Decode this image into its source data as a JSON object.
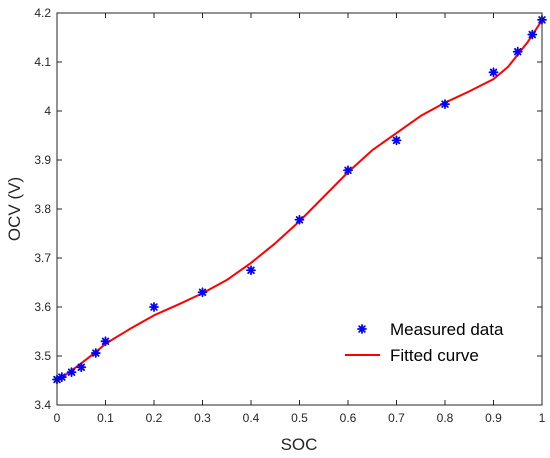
{
  "chart_data": {
    "type": "scatter",
    "xlabel": "SOC",
    "ylabel": "OCV (V)",
    "xlim": [
      0,
      1
    ],
    "ylim": [
      3.4,
      4.2
    ],
    "xticks": [
      "0",
      "0.1",
      "0.2",
      "0.3",
      "0.4",
      "0.5",
      "0.6",
      "0.7",
      "0.8",
      "0.9",
      "1"
    ],
    "yticks": [
      "3.4",
      "3.5",
      "3.6",
      "3.7",
      "3.8",
      "3.9",
      "4",
      "4.1",
      "4.2"
    ],
    "grid": false,
    "legend_position": "bottom-right",
    "series": [
      {
        "name": "Measured data",
        "kind": "markers",
        "marker": "asterisk",
        "color": "#0000FF",
        "x": [
          0,
          0.01,
          0.03,
          0.05,
          0.08,
          0.1,
          0.2,
          0.3,
          0.4,
          0.5,
          0.6,
          0.7,
          0.8,
          0.9,
          0.95,
          0.98,
          1.0
        ],
        "y": [
          3.452,
          3.457,
          3.467,
          3.477,
          3.506,
          3.53,
          3.6,
          3.63,
          3.675,
          3.778,
          3.879,
          3.94,
          4.014,
          4.079,
          4.121,
          4.156,
          4.186
        ]
      },
      {
        "name": "Fitted curve",
        "kind": "line",
        "color": "#FF0000",
        "x": [
          0,
          0.02,
          0.05,
          0.08,
          0.1,
          0.15,
          0.2,
          0.25,
          0.3,
          0.35,
          0.4,
          0.45,
          0.5,
          0.55,
          0.6,
          0.65,
          0.7,
          0.75,
          0.8,
          0.85,
          0.9,
          0.93,
          0.95,
          0.97,
          0.99,
          1.0
        ],
        "y": [
          3.45,
          3.463,
          3.485,
          3.508,
          3.525,
          3.555,
          3.583,
          3.605,
          3.628,
          3.655,
          3.69,
          3.73,
          3.775,
          3.825,
          3.875,
          3.92,
          3.955,
          3.99,
          4.017,
          4.04,
          4.065,
          4.09,
          4.115,
          4.14,
          4.17,
          4.185
        ]
      }
    ]
  }
}
